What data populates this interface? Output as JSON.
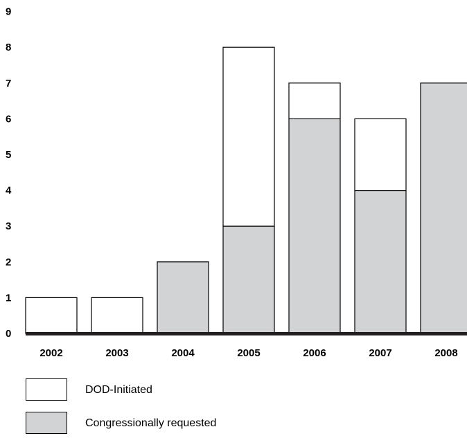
{
  "chart_data": {
    "type": "bar",
    "stacked": true,
    "categories": [
      "2002",
      "2003",
      "2004",
      "2005",
      "2006",
      "2007",
      "2008"
    ],
    "series": [
      {
        "name": "Congressionally requested",
        "color": "#d1d3d4",
        "values": [
          0,
          0,
          2,
          3,
          6,
          4,
          7
        ]
      },
      {
        "name": "DOD-Initiated",
        "color": "#ffffff",
        "values": [
          1,
          1,
          0,
          5,
          1,
          2,
          0
        ]
      }
    ],
    "ylim": [
      0,
      9
    ],
    "yticks": [
      "0",
      "1",
      "2",
      "3",
      "4",
      "5",
      "6",
      "7",
      "8",
      "9"
    ],
    "xlabel": "",
    "ylabel": "",
    "title": "",
    "grid": false,
    "legend_position": "bottom-left"
  },
  "legend": [
    {
      "label": "DOD-Initiated",
      "color": "#ffffff"
    },
    {
      "label": "Congressionally requested",
      "color": "#d1d3d4"
    }
  ]
}
